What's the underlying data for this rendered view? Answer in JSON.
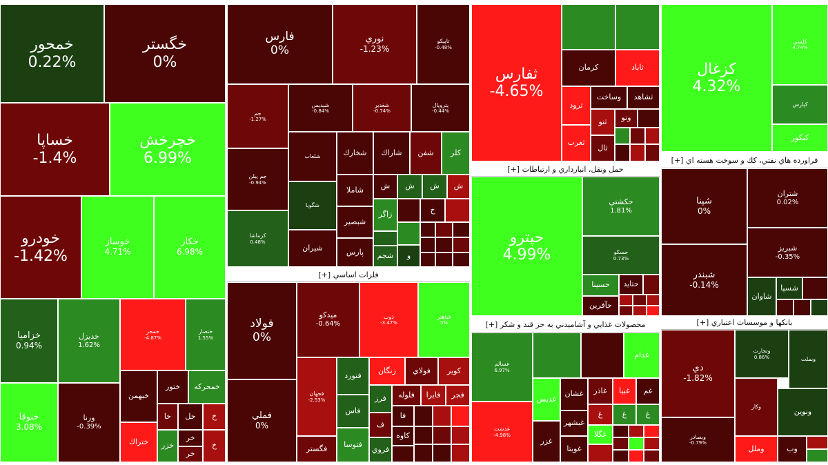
{
  "headers": {
    "metals": "فلزات اساسي [+]",
    "transport": "حمل ونقل، انبارداري و ارتباطات [+]",
    "food": "محصولات غذايي و آشاميدني به جز قند و شكر [+]",
    "oil": "فراورده هاي نفتي، كك و سوخت هسته اي [+]",
    "banks": "بانكها و موسسات اعتباري [+]"
  },
  "cells": {
    "khamhor": {
      "name": "خمحور",
      "pct": "0.22%"
    },
    "khgostar": {
      "name": "خگستر",
      "pct": "0%"
    },
    "khsapa": {
      "name": "خساپا",
      "pct": "-1.4%"
    },
    "khcharkhesh": {
      "name": "خچرخش",
      "pct": "6.99%"
    },
    "khodro": {
      "name": "خودرو",
      "pct": "-1.42%"
    },
    "khosar": {
      "name": "خوساز",
      "pct": "4.71%"
    },
    "khkar": {
      "name": "خكار",
      "pct": "6.98%"
    },
    "khazamia": {
      "name": "خزاميا",
      "pct": "0.94%"
    },
    "khrizal": {
      "name": "خديزل",
      "pct": "1.62%"
    },
    "khchanr": {
      "name": "خمحر",
      "pct": "-4.87%"
    },
    "khmini1": {
      "name": "خنصار",
      "pct": "1.55%"
    },
    "khotega": {
      "name": "خنوقا",
      "pct": "3.08%"
    },
    "vrana": {
      "name": "ورنا",
      "pct": "-0.39%"
    },
    "khbahman": {
      "name": "خبهمن",
      "pct": ""
    },
    "khtoor": {
      "name": "ختور",
      "pct": ""
    },
    "khmharkeh": {
      "name": "خمحركه",
      "pct": ""
    },
    "khtrak": {
      "name": "ختراك",
      "pct": ""
    },
    "khzar": {
      "name": "خزر",
      "pct": ""
    },
    "kha1": {
      "name": "خا",
      "pct": ""
    },
    "khl": {
      "name": "خل",
      "pct": ""
    },
    "kh1": {
      "name": "خ",
      "pct": ""
    },
    "khr1": {
      "name": "خر",
      "pct": ""
    },
    "khr2": {
      "name": "خر",
      "pct": ""
    },
    "khc1": {
      "name": "خ",
      "pct": ""
    },
    "fars": {
      "name": "فارس",
      "pct": "0%"
    },
    "noori": {
      "name": "نوري",
      "pct": "-1.23%"
    },
    "tapiko": {
      "name": "تاپيكو",
      "pct": "-0.48%"
    },
    "jam": {
      "name": "جم",
      "pct": "-1.27%"
    },
    "shpdis": {
      "name": "شپديس",
      "pct": "-0.84%"
    },
    "shghdir": {
      "name": "شغدير",
      "pct": "-0.74%"
    },
    "pal": {
      "name": "پتروپال",
      "pct": "-0.44%"
    },
    "shlkh1": {
      "name": "شلعاب",
      "pct": ""
    },
    "shkhark": {
      "name": "شخارك",
      "pct": ""
    },
    "sharak": {
      "name": "شاراك",
      "pct": ""
    },
    "shfan": {
      "name": "شفن",
      "pct": ""
    },
    "kalr": {
      "name": "كلر",
      "pct": ""
    },
    "jampil": {
      "name": "جم پيلن",
      "pct": "-0.94%"
    },
    "shamla": {
      "name": "شاملا",
      "pct": ""
    },
    "shbsi": {
      "name": "ش",
      "pct": ""
    },
    "shs1": {
      "name": "ش",
      "pct": ""
    },
    "shs2": {
      "name": "ش",
      "pct": ""
    },
    "shs3": {
      "name": "ش",
      "pct": ""
    },
    "shbasper": {
      "name": "شبصير",
      "pct": ""
    },
    "zagros": {
      "name": "زاگر",
      "pct": ""
    },
    "kermasha": {
      "name": "كرماشا",
      "pct": "0.48%"
    },
    "shiran": {
      "name": "شيران",
      "pct": ""
    },
    "pars": {
      "name": "پارس",
      "pct": ""
    },
    "shjam": {
      "name": "شجم",
      "pct": ""
    },
    "kh1b": {
      "name": "خ",
      "pct": ""
    },
    "vo1": {
      "name": "و",
      "pct": ""
    },
    "petsmall": {
      "name": "شگويا",
      "pct": ""
    },
    "sfars": {
      "name": "ثفارس",
      "pct": "-4.65%"
    },
    "sabad": {
      "name": "ثاباد",
      "pct": ""
    },
    "kerman": {
      "name": "كرمان",
      "pct": ""
    },
    "sroud": {
      "name": "ثرود",
      "pct": ""
    },
    "vsakht": {
      "name": "وساخت",
      "pct": ""
    },
    "sshahed": {
      "name": "ثشاهد",
      "pct": ""
    },
    "stno": {
      "name": "ثنو",
      "pct": ""
    },
    "vto": {
      "name": "وتو",
      "pct": ""
    },
    "sgharb": {
      "name": "ثغرب",
      "pct": ""
    },
    "sal": {
      "name": "ثال",
      "pct": ""
    },
    "hchtro": {
      "name": "حپترو",
      "pct": "4.99%"
    },
    "hkashti": {
      "name": "حكشتي",
      "pct": "1.81%"
    },
    "hsakoo": {
      "name": "حسكو",
      "pct": "0.73%"
    },
    "hsina": {
      "name": "حسينا",
      "pct": ""
    },
    "htaid": {
      "name": "حتايد",
      "pct": ""
    },
    "hafrin": {
      "name": "حآفرين",
      "pct": ""
    },
    "ghsalem": {
      "name": "غسالم",
      "pct": "6.97%"
    },
    "ghdasht": {
      "name": "غدشت",
      "pct": "-4.98%"
    },
    "ghdam": {
      "name": "غدام",
      "pct": ""
    },
    "ghdis": {
      "name": "غديس",
      "pct": ""
    },
    "ghshan": {
      "name": "غشان",
      "pct": ""
    },
    "ghazar": {
      "name": "غاذر",
      "pct": ""
    },
    "ghbia": {
      "name": "غبيا",
      "pct": ""
    },
    "ghom": {
      "name": "غم",
      "pct": ""
    },
    "ghbshahr": {
      "name": "غبشهر",
      "pct": ""
    },
    "ghzar": {
      "name": "غزر",
      "pct": ""
    },
    "ghgola": {
      "name": "غگلا",
      "pct": ""
    },
    "ghvita": {
      "name": "غويتا",
      "pct": ""
    },
    "ghg1": {
      "name": "غ",
      "pct": ""
    },
    "ghg2": {
      "name": "غ",
      "pct": ""
    },
    "ghg3": {
      "name": "غ",
      "pct": ""
    },
    "kzghal": {
      "name": "كزغال",
      "pct": "4.32%"
    },
    "kalsi": {
      "name": "كلسي",
      "pct": "4.74%"
    },
    "kpars": {
      "name": "كپارس",
      "pct": ""
    },
    "kbkor": {
      "name": "كبكور",
      "pct": ""
    },
    "shphna": {
      "name": "شپنا",
      "pct": "0%"
    },
    "shtran": {
      "name": "شتران",
      "pct": "0.02%"
    },
    "shbriz": {
      "name": "شبريز",
      "pct": "-0.35%"
    },
    "shbandar": {
      "name": "شبندر",
      "pct": "-0.14%"
    },
    "shsia": {
      "name": "شسپا",
      "pct": ""
    },
    "shavan": {
      "name": "شاوان",
      "pct": ""
    },
    "foolad": {
      "name": "فولاد",
      "pct": "0%"
    },
    "fmeli": {
      "name": "فملي",
      "pct": "0%"
    },
    "mibdko": {
      "name": "ميدكو",
      "pct": "-0.64%"
    },
    "zob": {
      "name": "ذوب",
      "pct": "-3.47%"
    },
    "fiyata": {
      "name": "فباهنر",
      "pct": "5%"
    },
    "fjahan": {
      "name": "فجهان",
      "pct": "-2.53%"
    },
    "fnvard": {
      "name": "فنورد",
      "pct": ""
    },
    "znegan": {
      "name": "زنگان",
      "pct": ""
    },
    "foolai": {
      "name": "فولاي",
      "pct": ""
    },
    "kvir": {
      "name": "كوير",
      "pct": ""
    },
    "fghstr": {
      "name": "فگستر",
      "pct": ""
    },
    "fsva": {
      "name": "فتوسا",
      "pct": ""
    },
    "fas": {
      "name": "فاس",
      "pct": ""
    },
    "fraz": {
      "name": "فرز",
      "pct": ""
    },
    "flvleh": {
      "name": "فلوله",
      "pct": ""
    },
    "fair": {
      "name": "فايرا",
      "pct": ""
    },
    "fjr": {
      "name": "فجر",
      "pct": ""
    },
    "fa1": {
      "name": "فا",
      "pct": ""
    },
    "fa2": {
      "name": "ف",
      "pct": ""
    },
    "fkaveh": {
      "name": "كاوه",
      "pct": ""
    },
    "froi": {
      "name": "فروي",
      "pct": ""
    },
    "dey": {
      "name": "دي",
      "pct": "-1.82%"
    },
    "vtejarat": {
      "name": "وتجارت",
      "pct": "0.86%"
    },
    "vbmellat": {
      "name": "وبملت",
      "pct": ""
    },
    "vnovin": {
      "name": "ونوين",
      "pct": ""
    },
    "vmell": {
      "name": "وملل",
      "pct": ""
    },
    "vb": {
      "name": "وب",
      "pct": ""
    },
    "vsadr": {
      "name": "وبصادر",
      "pct": "-0.79%"
    },
    "vmsmall": {
      "name": "وكار",
      "pct": ""
    }
  }
}
